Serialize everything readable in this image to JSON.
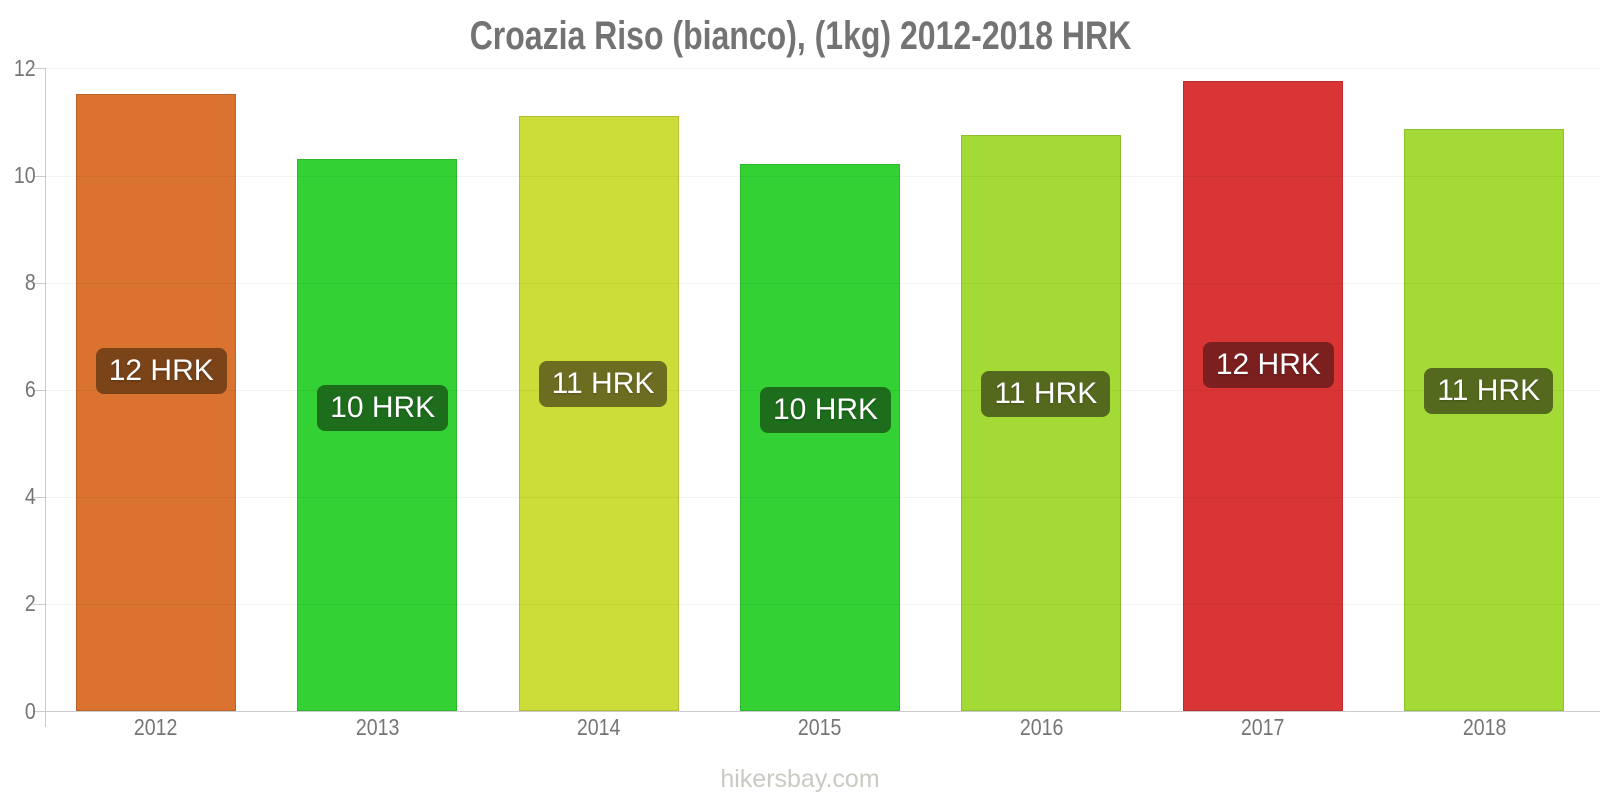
{
  "title": "Croazia Riso (bianco), (1kg) 2012-2018 HRK",
  "footer": "hikersbay.com",
  "colors": {
    "title_text": "#737373",
    "axis_line": "#cccccc",
    "tick_text": "#757575",
    "footer_text": "#c7cbc2",
    "label_text": "#ffffff"
  },
  "chart_data": {
    "type": "bar",
    "title": "Croazia Riso (bianco), (1kg) 2012-2018 HRK",
    "categories": [
      "2012",
      "2013",
      "2014",
      "2015",
      "2016",
      "2017",
      "2018"
    ],
    "values": [
      11.53,
      10.3,
      11.11,
      10.22,
      10.76,
      11.76,
      10.86
    ],
    "bar_value_labels": [
      "12 HRK",
      "10 HRK",
      "11 HRK",
      "10 HRK",
      "11 HRK",
      "12 HRK",
      "11 HRK"
    ],
    "bar_colors": [
      "#d9732f",
      "#33d133",
      "#ccdc38",
      "#33d133",
      "#a3da36",
      "#d93535",
      "#a3da36"
    ],
    "bar_label_bg_colors": [
      "#7a4318",
      "#1d6d1d",
      "#6d6d22",
      "#1d6d1d",
      "#55691e",
      "#7c1f1f",
      "#55691e"
    ],
    "xlabel": "",
    "ylabel": "",
    "ylim": [
      0,
      12
    ],
    "yticks": [
      0,
      2,
      4,
      6,
      8,
      10,
      12
    ],
    "grid": "horizontal-faint",
    "legend": "none",
    "unit": "HRK"
  }
}
